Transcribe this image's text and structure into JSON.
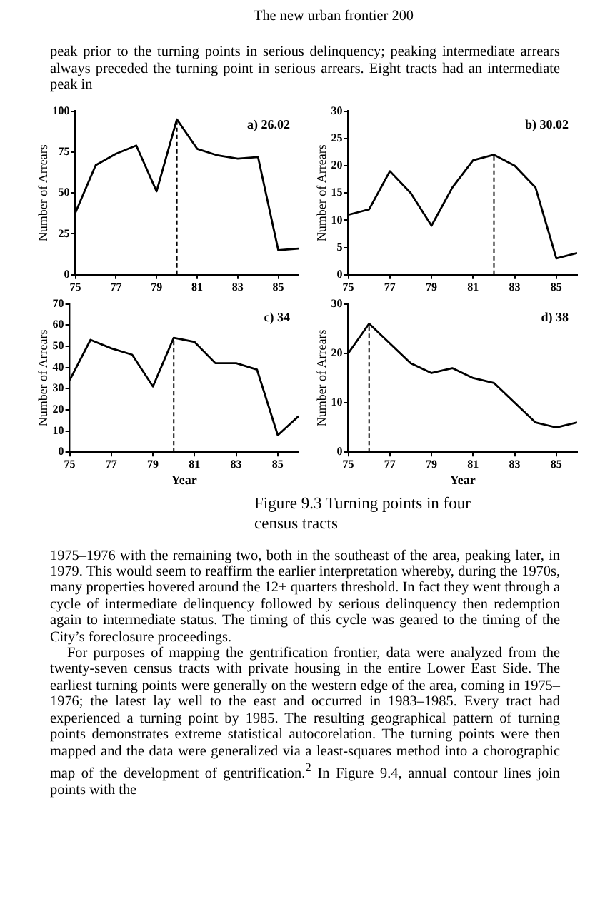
{
  "chart_data": [
    {
      "type": "line",
      "title": "a) 26.02",
      "ylabel": "Number of Arrears",
      "x": [
        75,
        76,
        77,
        78,
        79,
        80,
        81,
        82,
        83,
        84,
        85,
        86
      ],
      "xlim": [
        75,
        86
      ],
      "xticks": [
        75,
        77,
        79,
        81,
        83,
        85
      ],
      "ylim": [
        0,
        100
      ],
      "yticks": [
        0,
        25,
        50,
        75,
        100
      ],
      "grid": false,
      "legend": false,
      "marker": "none",
      "line_style": "solid",
      "series": [
        {
          "color": "#000000",
          "values": [
            38,
            67,
            74,
            79,
            51,
            95,
            77,
            73,
            71,
            72,
            15,
            16
          ]
        }
      ],
      "ref_lines": [
        {
          "axis": "x",
          "value": 80,
          "line_style": "dashed"
        }
      ],
      "annotations": [
        "The new urban frontier 200",
        "peak prior to the turning points in serious delinquency; peaking intermediate arrears always preceded the turning point in serious arrears. Eight tracts had an intermediate peak in"
      ]
    },
    {
      "type": "line",
      "title": "b) 30.02",
      "ylabel": "Number of Arrears",
      "x": [
        75,
        76,
        77,
        78,
        79,
        80,
        81,
        82,
        83,
        84,
        85,
        86
      ],
      "xlim": [
        75,
        86
      ],
      "xticks": [
        75,
        77,
        79,
        81,
        83,
        85
      ],
      "ylim": [
        0,
        30
      ],
      "yticks": [
        0,
        5,
        10,
        15,
        20,
        25,
        30
      ],
      "grid": false,
      "legend": false,
      "marker": "none",
      "line_style": "solid",
      "series": [
        {
          "color": "#000000",
          "values": [
            11,
            12,
            19,
            15,
            9,
            16,
            21,
            22,
            20,
            16,
            3,
            4
          ]
        }
      ],
      "ref_lines": [
        {
          "axis": "x",
          "value": 82,
          "line_style": "dashed"
        }
      ]
    },
    {
      "type": "line",
      "title": "c) 34",
      "xlabel": "Year",
      "ylabel": "Number of Arrears",
      "x": [
        75,
        76,
        77,
        78,
        79,
        80,
        81,
        82,
        83,
        84,
        85,
        86
      ],
      "xlim": [
        75,
        86
      ],
      "xticks": [
        75,
        77,
        79,
        81,
        83,
        85
      ],
      "ylim": [
        0,
        70
      ],
      "yticks": [
        0,
        10,
        20,
        30,
        40,
        50,
        60,
        70
      ],
      "grid": false,
      "legend": false,
      "marker": "none",
      "line_style": "solid",
      "series": [
        {
          "color": "#000000",
          "values": [
            34,
            53,
            49,
            46,
            31,
            54,
            52,
            42,
            42,
            39,
            8,
            17
          ]
        }
      ],
      "ref_lines": [
        {
          "axis": "x",
          "value": 80,
          "line_style": "dashed"
        }
      ]
    },
    {
      "type": "line",
      "title": "d) 38",
      "xlabel": "Year",
      "ylabel": "Number of Arrears",
      "x": [
        75,
        76,
        77,
        78,
        79,
        80,
        81,
        82,
        83,
        84,
        85,
        86
      ],
      "xlim": [
        75,
        86
      ],
      "xticks": [
        75,
        77,
        79,
        81,
        83,
        85
      ],
      "ylim": [
        0,
        30
      ],
      "yticks": [
        0,
        10,
        20,
        30
      ],
      "grid": false,
      "legend": false,
      "marker": "none",
      "line_style": "solid",
      "series": [
        {
          "color": "#000000",
          "values": [
            20,
            26,
            22,
            18,
            16,
            17,
            15,
            14,
            10,
            6,
            5,
            6
          ]
        }
      ],
      "ref_lines": [
        {
          "axis": "x",
          "value": 76,
          "line_style": "dashed"
        }
      ],
      "annotations": [
        "Figure 9.3 Turning points in four census tracts",
        "1975–1976 with the remaining two, both in the southeast of the area, peaking later, in 1979. This would seem to reaffirm the earlier interpretation whereby, during the 1970s, many properties hovered around the 12+ quarters threshold. In fact they went through a cycle of intermediate delinquency followed by serious delinquency then redemption again to intermediate status. The timing of this cycle was geared to the timing of the City’s foreclosure proceedings.",
        "For purposes of mapping the gentrification frontier, data were analyzed from the twenty-seven census tracts with private housing in the entire Lower East Side. The earliest turning points were generally on the western edge of the area, coming in 1975–1976; the latest lay well to the east and occurred in 1983–1985. Every tract had experienced a turning point by 1985. The resulting geographical pattern of turning points demonstrates extreme statistical autocorelation. The turning points were then mapped and the data were generalized via a least-squares method into a chorographic map of the development of gentrification.$^{2}$ In Figure 9.4, annual contour lines join points with the"
      ]
    }
  ]
}
